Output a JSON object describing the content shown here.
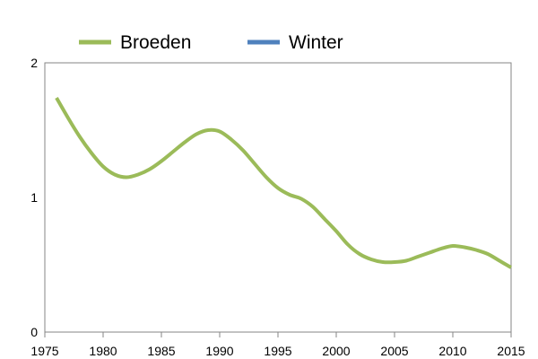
{
  "chart_data": {
    "type": "line",
    "title": "",
    "xlabel": "",
    "ylabel": "",
    "xlim": [
      1975,
      2015
    ],
    "ylim": [
      0,
      2
    ],
    "x_ticks": [
      1975,
      1980,
      1985,
      1990,
      1995,
      2000,
      2005,
      2010,
      2015
    ],
    "y_ticks": [
      0,
      1,
      2
    ],
    "grid": false,
    "legend_position": "top",
    "series": [
      {
        "name": "Broeden",
        "color": "#9bbb59",
        "x": [
          1976,
          1977,
          1978,
          1979,
          1980,
          1981,
          1982,
          1983,
          1984,
          1985,
          1986,
          1987,
          1988,
          1989,
          1990,
          1991,
          1992,
          1993,
          1994,
          1995,
          1996,
          1997,
          1998,
          1999,
          2000,
          2001,
          2002,
          2003,
          2004,
          2005,
          2006,
          2007,
          2008,
          2009,
          2010,
          2011,
          2012,
          2013,
          2014,
          2015
        ],
        "y": [
          1.74,
          1.59,
          1.45,
          1.33,
          1.23,
          1.17,
          1.15,
          1.17,
          1.21,
          1.27,
          1.34,
          1.41,
          1.47,
          1.5,
          1.49,
          1.43,
          1.35,
          1.25,
          1.15,
          1.07,
          1.02,
          0.99,
          0.93,
          0.84,
          0.75,
          0.65,
          0.58,
          0.54,
          0.52,
          0.52,
          0.53,
          0.56,
          0.59,
          0.62,
          0.64,
          0.63,
          0.61,
          0.58,
          0.53,
          0.48
        ]
      },
      {
        "name": "Winter",
        "color": "#4f81bd",
        "x": [],
        "y": []
      }
    ]
  }
}
